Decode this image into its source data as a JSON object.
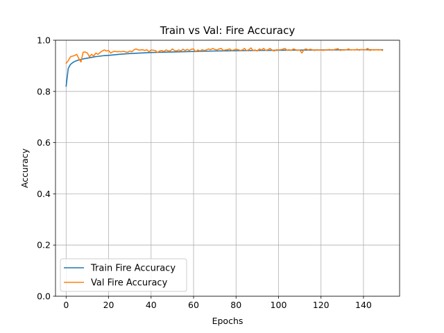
{
  "chart_data": {
    "type": "line",
    "title": "Train vs Val: Fire Accuracy",
    "xlabel": "Epochs",
    "ylabel": "Accuracy",
    "xlim": [
      -5,
      157
    ],
    "ylim": [
      0.0,
      1.0
    ],
    "xticks": [
      0,
      20,
      40,
      60,
      80,
      100,
      120,
      140
    ],
    "yticks": [
      0.0,
      0.2,
      0.4,
      0.6,
      0.8,
      1.0
    ],
    "grid": true,
    "legend_position": "lower-left",
    "series": [
      {
        "name": "Train Fire Accuracy",
        "color": "#1f77b4",
        "x": [
          0,
          1,
          2,
          3,
          4,
          5,
          6,
          7,
          8,
          10,
          12,
          14,
          16,
          18,
          20,
          25,
          30,
          35,
          40,
          45,
          50,
          55,
          60,
          65,
          70,
          75,
          80,
          90,
          100,
          110,
          120,
          130,
          140,
          149
        ],
        "y": [
          0.82,
          0.89,
          0.905,
          0.912,
          0.917,
          0.92,
          0.923,
          0.925,
          0.927,
          0.93,
          0.933,
          0.936,
          0.938,
          0.94,
          0.941,
          0.945,
          0.948,
          0.95,
          0.952,
          0.953,
          0.954,
          0.955,
          0.956,
          0.957,
          0.958,
          0.9585,
          0.959,
          0.96,
          0.961,
          0.9615,
          0.962,
          0.9625,
          0.963,
          0.963
        ]
      },
      {
        "name": "Val Fire Accuracy",
        "color": "#ff7f0e",
        "x": [
          0,
          1,
          2,
          3,
          4,
          5,
          6,
          7,
          8,
          9,
          10,
          11,
          12,
          13,
          14,
          15,
          16,
          17,
          18,
          19,
          20,
          21,
          22,
          23,
          24,
          25,
          26,
          27,
          28,
          29,
          30,
          31,
          32,
          33,
          34,
          35,
          36,
          37,
          38,
          39,
          40,
          41,
          42,
          43,
          44,
          45,
          46,
          47,
          48,
          49,
          50,
          51,
          52,
          53,
          54,
          55,
          56,
          57,
          58,
          59,
          60,
          61,
          62,
          63,
          64,
          65,
          66,
          67,
          68,
          69,
          70,
          71,
          72,
          73,
          74,
          75,
          76,
          77,
          78,
          79,
          80,
          81,
          82,
          83,
          84,
          85,
          86,
          87,
          88,
          89,
          90,
          91,
          92,
          93,
          94,
          95,
          96,
          97,
          98,
          99,
          100,
          101,
          102,
          103,
          104,
          105,
          106,
          107,
          108,
          109,
          110,
          111,
          112,
          113,
          114,
          115,
          116,
          117,
          118,
          119,
          120,
          121,
          122,
          123,
          124,
          125,
          126,
          127,
          128,
          129,
          130,
          131,
          132,
          133,
          134,
          135,
          136,
          137,
          138,
          139,
          140,
          141,
          142,
          143,
          144,
          145,
          146,
          147,
          148,
          149
        ],
        "y": [
          0.91,
          0.92,
          0.935,
          0.938,
          0.94,
          0.945,
          0.928,
          0.915,
          0.953,
          0.954,
          0.95,
          0.935,
          0.945,
          0.938,
          0.95,
          0.945,
          0.952,
          0.958,
          0.962,
          0.958,
          0.96,
          0.95,
          0.955,
          0.957,
          0.955,
          0.956,
          0.955,
          0.957,
          0.954,
          0.953,
          0.958,
          0.955,
          0.963,
          0.966,
          0.962,
          0.962,
          0.963,
          0.96,
          0.963,
          0.955,
          0.962,
          0.961,
          0.96,
          0.952,
          0.958,
          0.96,
          0.956,
          0.962,
          0.959,
          0.958,
          0.966,
          0.96,
          0.958,
          0.962,
          0.958,
          0.965,
          0.96,
          0.964,
          0.96,
          0.965,
          0.966,
          0.955,
          0.962,
          0.958,
          0.963,
          0.96,
          0.962,
          0.966,
          0.963,
          0.968,
          0.964,
          0.962,
          0.966,
          0.968,
          0.96,
          0.962,
          0.963,
          0.966,
          0.96,
          0.962,
          0.965,
          0.963,
          0.96,
          0.962,
          0.968,
          0.959,
          0.963,
          0.97,
          0.96,
          0.962,
          0.958,
          0.966,
          0.962,
          0.968,
          0.96,
          0.963,
          0.968,
          0.961,
          0.958,
          0.963,
          0.962,
          0.963,
          0.965,
          0.968,
          0.961,
          0.963,
          0.96,
          0.966,
          0.963,
          0.96,
          0.962,
          0.95,
          0.963,
          0.966,
          0.962,
          0.965,
          0.962,
          0.96,
          0.963,
          0.961,
          0.963,
          0.96,
          0.962,
          0.962,
          0.964,
          0.961,
          0.963,
          0.965,
          0.967,
          0.96,
          0.962,
          0.962,
          0.963,
          0.966,
          0.962,
          0.963,
          0.962,
          0.965,
          0.961,
          0.964,
          0.962,
          0.963,
          0.968,
          0.96,
          0.963,
          0.962,
          0.963,
          0.962,
          0.963,
          0.96
        ]
      }
    ]
  }
}
